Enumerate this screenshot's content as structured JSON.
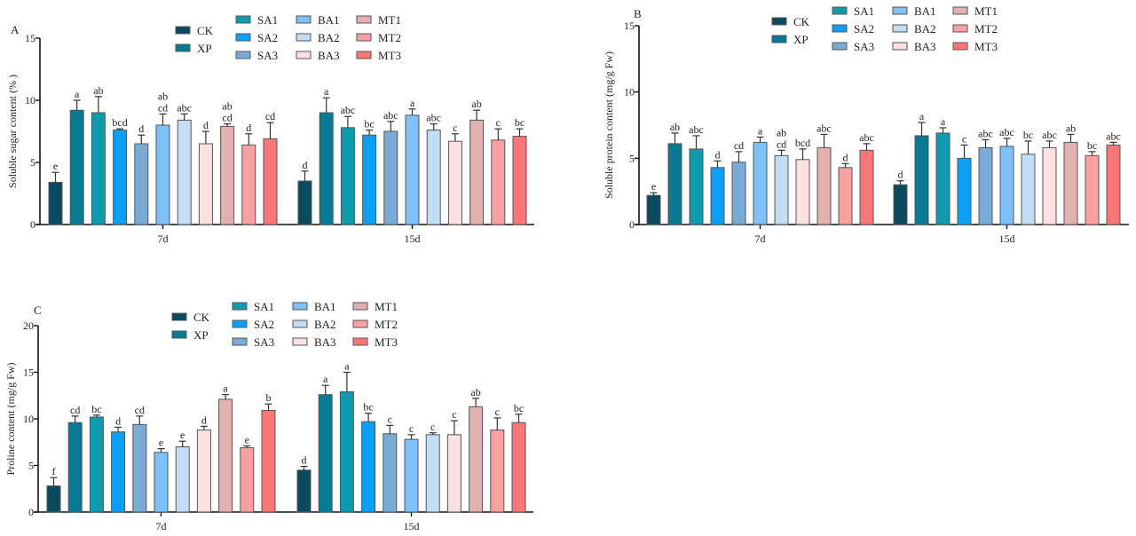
{
  "groups": [
    "CK",
    "XP",
    "SA1",
    "SA2",
    "SA3",
    "BA1",
    "BA2",
    "BA3",
    "MT1",
    "MT2",
    "MT3"
  ],
  "colors": {
    "CK": "#0b4a5e",
    "XP": "#087a91",
    "SA1": "#0e9bb0",
    "SA2": "#0aa0f5",
    "SA3": "#7aabd4",
    "BA1": "#7ec0fa",
    "BA2": "#c3ddf5",
    "BA3": "#fde0e0",
    "MT1": "#e3b0b0",
    "MT2": "#f9a0a0",
    "MT3": "#fb7777"
  },
  "chart_data": [
    {
      "panel": "A",
      "type": "bar",
      "title": "",
      "xlabel": "",
      "ylabel": "Soluble sugar content (% )",
      "ylim": [
        0,
        15
      ],
      "yticks": [
        0,
        5,
        10,
        15
      ],
      "categories": [
        "7d",
        "15d"
      ],
      "legend": "top",
      "series": [
        {
          "name": "CK",
          "values": [
            3.4,
            3.5
          ],
          "errors": [
            0.8,
            0.8
          ],
          "letters": [
            "e",
            "d"
          ]
        },
        {
          "name": "XP",
          "values": [
            9.2,
            9.0
          ],
          "errors": [
            0.8,
            1.2
          ],
          "letters": [
            "a",
            "a"
          ]
        },
        {
          "name": "SA1",
          "values": [
            9.0,
            7.8
          ],
          "errors": [
            1.3,
            0.9
          ],
          "letters": [
            "ab",
            "abc"
          ]
        },
        {
          "name": "SA2",
          "values": [
            7.6,
            7.2
          ],
          "errors": [
            0.1,
            0.4
          ],
          "letters": [
            "bcd",
            "bc"
          ]
        },
        {
          "name": "SA3",
          "values": [
            6.5,
            7.5
          ],
          "errors": [
            0.7,
            0.8
          ],
          "letters": [
            "d",
            "abc"
          ]
        },
        {
          "name": "BA1",
          "values": [
            8.0,
            8.8
          ],
          "errors": [
            0.9,
            0.5
          ],
          "letters": [
            "ab\ncd",
            "a"
          ]
        },
        {
          "name": "BA2",
          "values": [
            8.4,
            7.6
          ],
          "errors": [
            0.5,
            0.5
          ],
          "letters": [
            "abc",
            "abc"
          ]
        },
        {
          "name": "BA3",
          "values": [
            6.5,
            6.7
          ],
          "errors": [
            1.0,
            0.6
          ],
          "letters": [
            "d",
            "c"
          ]
        },
        {
          "name": "MT1",
          "values": [
            7.9,
            8.4
          ],
          "errors": [
            0.2,
            0.8
          ],
          "letters": [
            "ab\ncd",
            "ab"
          ]
        },
        {
          "name": "MT2",
          "values": [
            6.4,
            6.8
          ],
          "errors": [
            0.9,
            0.9
          ],
          "letters": [
            "d",
            "c"
          ]
        },
        {
          "name": "MT3",
          "values": [
            6.9,
            7.1
          ],
          "errors": [
            1.3,
            0.6
          ],
          "letters": [
            "cd",
            "bc"
          ]
        }
      ]
    },
    {
      "panel": "B",
      "type": "bar",
      "title": "",
      "xlabel": "",
      "ylabel": "Soluble protein content (mg/g Fw)",
      "ylim": [
        0,
        15
      ],
      "yticks": [
        0,
        5,
        10,
        15
      ],
      "categories": [
        "7d",
        "15d"
      ],
      "legend": "top",
      "series": [
        {
          "name": "CK",
          "values": [
            2.2,
            3.0
          ],
          "errors": [
            0.2,
            0.3
          ],
          "letters": [
            "e",
            "d"
          ]
        },
        {
          "name": "XP",
          "values": [
            6.1,
            6.7
          ],
          "errors": [
            0.8,
            1.0
          ],
          "letters": [
            "ab",
            "a"
          ]
        },
        {
          "name": "SA1",
          "values": [
            5.7,
            6.9
          ],
          "errors": [
            1.0,
            0.4
          ],
          "letters": [
            "abc",
            "a"
          ]
        },
        {
          "name": "SA2",
          "values": [
            4.3,
            5.0
          ],
          "errors": [
            0.5,
            1.0
          ],
          "letters": [
            "d",
            "c"
          ]
        },
        {
          "name": "SA3",
          "values": [
            4.7,
            5.8
          ],
          "errors": [
            0.8,
            0.6
          ],
          "letters": [
            "cd",
            "abc"
          ]
        },
        {
          "name": "BA1",
          "values": [
            6.2,
            5.9
          ],
          "errors": [
            0.4,
            0.6
          ],
          "letters": [
            "a",
            "abc"
          ]
        },
        {
          "name": "BA2",
          "values": [
            5.2,
            5.3
          ],
          "errors": [
            0.4,
            1.0
          ],
          "letters": [
            "ab\ncd",
            "bc"
          ]
        },
        {
          "name": "BA3",
          "values": [
            4.9,
            5.8
          ],
          "errors": [
            0.8,
            0.5
          ],
          "letters": [
            "bcd",
            "abc"
          ]
        },
        {
          "name": "MT1",
          "values": [
            5.8,
            6.2
          ],
          "errors": [
            1.0,
            0.6
          ],
          "letters": [
            "abc",
            "ab"
          ]
        },
        {
          "name": "MT2",
          "values": [
            4.3,
            5.2
          ],
          "errors": [
            0.3,
            0.3
          ],
          "letters": [
            "d",
            "bc"
          ]
        },
        {
          "name": "MT3",
          "values": [
            5.6,
            6.0
          ],
          "errors": [
            0.5,
            0.2
          ],
          "letters": [
            "abc",
            "abc"
          ]
        }
      ]
    },
    {
      "panel": "C",
      "type": "bar",
      "title": "",
      "xlabel": "",
      "ylabel": "Proline content (mg/g Fw)",
      "ylim": [
        0,
        20
      ],
      "yticks": [
        0,
        5,
        10,
        15,
        20
      ],
      "categories": [
        "7d",
        "15d"
      ],
      "legend": "top",
      "series": [
        {
          "name": "CK",
          "values": [
            2.8,
            4.5
          ],
          "errors": [
            0.9,
            0.4
          ],
          "letters": [
            "f",
            "d"
          ]
        },
        {
          "name": "XP",
          "values": [
            9.6,
            12.6
          ],
          "errors": [
            0.7,
            1.0
          ],
          "letters": [
            "cd",
            "a"
          ]
        },
        {
          "name": "SA1",
          "values": [
            10.2,
            12.9
          ],
          "errors": [
            0.2,
            2.1
          ],
          "letters": [
            "bc",
            "a"
          ]
        },
        {
          "name": "SA2",
          "values": [
            8.6,
            9.7
          ],
          "errors": [
            0.5,
            0.9
          ],
          "letters": [
            "d",
            "bc"
          ]
        },
        {
          "name": "SA3",
          "values": [
            9.4,
            8.4
          ],
          "errors": [
            0.9,
            0.9
          ],
          "letters": [
            "cd",
            "c"
          ]
        },
        {
          "name": "BA1",
          "values": [
            6.4,
            7.8
          ],
          "errors": [
            0.4,
            0.5
          ],
          "letters": [
            "e",
            "c"
          ]
        },
        {
          "name": "BA2",
          "values": [
            7.0,
            8.3
          ],
          "errors": [
            0.6,
            0.2
          ],
          "letters": [
            "e",
            "c"
          ]
        },
        {
          "name": "BA3",
          "values": [
            8.8,
            8.3
          ],
          "errors": [
            0.4,
            1.5
          ],
          "letters": [
            "d",
            "c"
          ]
        },
        {
          "name": "MT1",
          "values": [
            12.1,
            11.3
          ],
          "errors": [
            0.5,
            0.9
          ],
          "letters": [
            "a",
            "ab"
          ]
        },
        {
          "name": "MT2",
          "values": [
            6.9,
            8.8
          ],
          "errors": [
            0.2,
            1.3
          ],
          "letters": [
            "e",
            "c"
          ]
        },
        {
          "name": "MT3",
          "values": [
            10.9,
            9.6
          ],
          "errors": [
            0.7,
            0.9
          ],
          "letters": [
            "b",
            "bc"
          ]
        }
      ]
    }
  ]
}
